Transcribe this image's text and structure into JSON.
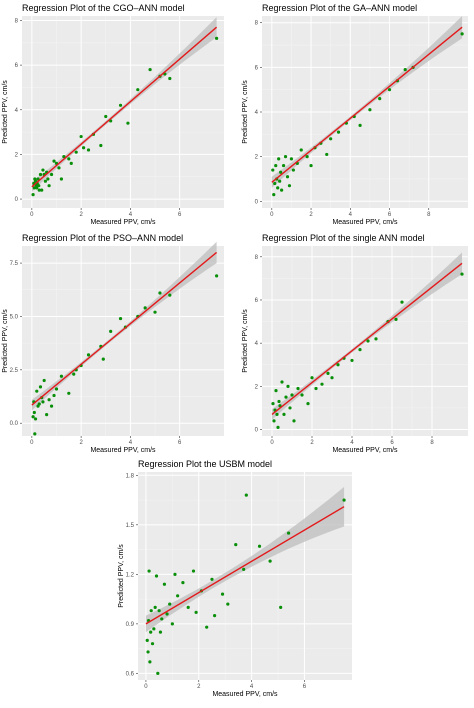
{
  "chart_data": [
    {
      "type": "scatter",
      "title": "Regression Plot of the CGO–ANN model",
      "xlabel": "Measured PPV, cm/s",
      "ylabel": "Predicted PPV, cm/s",
      "xlim": [
        -0.4,
        7.8
      ],
      "ylim": [
        -0.4,
        8.2
      ],
      "xticks": [
        0,
        2,
        4,
        6
      ],
      "yticks": [
        0,
        2,
        4,
        6,
        8
      ],
      "fit_line": {
        "x": [
          0,
          7.5
        ],
        "y": [
          0.55,
          7.7
        ]
      },
      "band_halfwidth": [
        0.22,
        0.1,
        0.45
      ],
      "series": [
        {
          "x": [
            0.05,
            0.08,
            0.1,
            0.12,
            0.15,
            0.18,
            0.2,
            0.22,
            0.25,
            0.28,
            0.3,
            0.35,
            0.4,
            0.45,
            0.5,
            0.55,
            0.6,
            0.65,
            0.7,
            0.8,
            0.9,
            1.0,
            1.1,
            1.2,
            1.3,
            1.5,
            1.6,
            1.8,
            2.0,
            2.1,
            2.3,
            2.5,
            2.8,
            3.0,
            3.2,
            3.6,
            3.9,
            4.3,
            4.8,
            5.2,
            5.4,
            5.6,
            7.5
          ],
          "y": [
            0.2,
            0.7,
            0.5,
            0.9,
            0.8,
            0.6,
            0.5,
            0.7,
            0.9,
            0.6,
            0.4,
            1.1,
            0.4,
            1.3,
            1.1,
            0.8,
            1.2,
            0.9,
            0.6,
            1.1,
            1.7,
            1.6,
            1.4,
            0.9,
            1.9,
            1.8,
            1.6,
            2.1,
            2.8,
            2.3,
            2.2,
            2.9,
            2.4,
            3.7,
            3.5,
            4.2,
            3.4,
            4.9,
            5.8,
            5.5,
            5.6,
            5.4,
            7.2
          ]
        }
      ]
    },
    {
      "type": "scatter",
      "title": "Regression Plot of the GA–ANN model",
      "xlabel": "Measured PPV, cm/s",
      "ylabel": "Predicted PPV, cm/s",
      "xlim": [
        -0.5,
        10.0
      ],
      "ylim": [
        -0.3,
        8.3
      ],
      "xticks": [
        0,
        2,
        4,
        6,
        8
      ],
      "yticks": [
        0,
        2,
        4,
        6,
        8
      ],
      "fit_line": {
        "x": [
          0,
          9.7
        ],
        "y": [
          0.85,
          7.8
        ]
      },
      "band_halfwidth": [
        0.25,
        0.1,
        0.5
      ],
      "series": [
        {
          "x": [
            0.05,
            0.1,
            0.15,
            0.2,
            0.25,
            0.3,
            0.35,
            0.4,
            0.45,
            0.5,
            0.6,
            0.7,
            0.8,
            0.9,
            1.0,
            1.1,
            1.3,
            1.5,
            1.8,
            2.0,
            2.2,
            2.5,
            2.8,
            3.0,
            3.4,
            3.8,
            4.2,
            4.5,
            5.0,
            5.5,
            6.0,
            6.4,
            6.8,
            7.2,
            9.7
          ],
          "y": [
            1.4,
            0.3,
            0.8,
            1.6,
            1.0,
            0.6,
            1.9,
            0.9,
            1.3,
            0.5,
            1.6,
            2.0,
            1.1,
            0.7,
            1.9,
            1.4,
            1.7,
            2.3,
            2.0,
            1.6,
            2.4,
            2.6,
            2.1,
            2.8,
            3.1,
            3.5,
            3.8,
            3.4,
            4.1,
            4.6,
            5.0,
            5.4,
            5.9,
            6.0,
            7.5
          ]
        }
      ]
    },
    {
      "type": "scatter",
      "title": "Regression Plot of the PSO–ANN model",
      "xlabel": "Measured PPV, cm/s",
      "ylabel": "Predicted PPV, cm/s",
      "xlim": [
        -0.4,
        7.8
      ],
      "ylim": [
        -0.6,
        8.3
      ],
      "xticks": [
        0,
        2,
        4,
        6
      ],
      "yticks": [
        0.0,
        2.5,
        5.0,
        7.5
      ],
      "ytick_labels": [
        "0.0",
        "2.5",
        "5.0",
        "7.5"
      ],
      "fit_line": {
        "x": [
          0,
          7.5
        ],
        "y": [
          0.85,
          8.0
        ]
      },
      "band_halfwidth": [
        0.25,
        0.1,
        0.5
      ],
      "series": [
        {
          "x": [
            0.05,
            0.08,
            0.1,
            0.12,
            0.15,
            0.2,
            0.25,
            0.3,
            0.35,
            0.4,
            0.45,
            0.5,
            0.6,
            0.7,
            0.8,
            0.9,
            1.0,
            1.2,
            1.5,
            1.7,
            1.8,
            2.0,
            2.3,
            2.8,
            2.9,
            3.2,
            3.6,
            3.8,
            4.3,
            4.6,
            5.0,
            5.2,
            5.6,
            7.5
          ],
          "y": [
            0.3,
            1.0,
            0.5,
            -0.5,
            0.2,
            1.5,
            0.8,
            0.9,
            1.7,
            1.2,
            1.0,
            2.0,
            0.4,
            1.1,
            0.8,
            1.3,
            1.6,
            2.2,
            1.4,
            2.3,
            2.5,
            2.7,
            3.2,
            3.6,
            3.0,
            4.3,
            4.9,
            4.5,
            5.0,
            5.4,
            5.2,
            6.1,
            6.0,
            6.9
          ]
        }
      ]
    },
    {
      "type": "scatter",
      "title": "Regression Plot of the single ANN model",
      "xlabel": "Measured PPV, cm/s",
      "ylabel": "Predicted PPV, cm/s",
      "xlim": [
        -0.5,
        9.8
      ],
      "ylim": [
        -0.3,
        8.5
      ],
      "xticks": [
        0,
        2,
        4,
        6,
        8
      ],
      "yticks": [
        0,
        2,
        4,
        6,
        8
      ],
      "fit_line": {
        "x": [
          0,
          9.5
        ],
        "y": [
          0.7,
          7.7
        ]
      },
      "band_halfwidth": [
        0.25,
        0.1,
        0.5
      ],
      "series": [
        {
          "x": [
            0.05,
            0.1,
            0.15,
            0.2,
            0.25,
            0.3,
            0.35,
            0.4,
            0.5,
            0.6,
            0.7,
            0.8,
            0.9,
            1.0,
            1.1,
            1.3,
            1.5,
            1.8,
            2.0,
            2.2,
            2.5,
            2.8,
            3.0,
            3.3,
            3.6,
            4.0,
            4.4,
            4.8,
            5.2,
            5.8,
            6.2,
            6.5,
            9.5
          ],
          "y": [
            1.2,
            0.4,
            0.9,
            1.8,
            0.7,
            0.1,
            1.3,
            1.1,
            2.2,
            0.7,
            1.5,
            2.0,
            1.0,
            1.6,
            0.4,
            1.9,
            1.6,
            1.2,
            2.4,
            1.9,
            2.1,
            2.6,
            2.4,
            3.0,
            3.3,
            3.2,
            3.7,
            4.1,
            4.2,
            5.0,
            5.1,
            5.9,
            7.2
          ]
        }
      ]
    },
    {
      "type": "scatter",
      "title": "Regression Plot the USBM model",
      "xlabel": "Measured PPV, cm/s",
      "ylabel": "Predicted PPV, cm/s",
      "xlim": [
        -0.3,
        7.8
      ],
      "ylim": [
        0.56,
        1.82
      ],
      "xticks": [
        0,
        2,
        4,
        6
      ],
      "yticks": [
        0.6,
        0.9,
        1.2,
        1.5,
        1.8
      ],
      "ytick_labels": [
        "0.6",
        "0.9",
        "1.2",
        "1.5",
        "1.8"
      ],
      "fit_line": {
        "x": [
          0,
          7.5
        ],
        "y": [
          0.9,
          1.61
        ]
      },
      "band_halfwidth": [
        0.05,
        0.03,
        0.12
      ],
      "series": [
        {
          "x": [
            0.05,
            0.08,
            0.1,
            0.12,
            0.15,
            0.18,
            0.2,
            0.25,
            0.3,
            0.35,
            0.4,
            0.45,
            0.5,
            0.55,
            0.6,
            0.7,
            0.8,
            0.9,
            1.0,
            1.1,
            1.2,
            1.4,
            1.6,
            1.8,
            1.9,
            2.1,
            2.3,
            2.5,
            2.6,
            2.9,
            3.1,
            3.4,
            3.7,
            3.8,
            4.3,
            4.7,
            5.1,
            5.4,
            7.5
          ],
          "y": [
            0.8,
            0.73,
            0.92,
            1.22,
            0.67,
            0.85,
            0.98,
            0.78,
            0.87,
            1.0,
            1.19,
            0.6,
            0.98,
            0.85,
            0.93,
            1.14,
            0.96,
            1.02,
            0.9,
            1.2,
            1.07,
            1.15,
            1.0,
            1.22,
            0.97,
            1.1,
            0.88,
            1.17,
            0.95,
            1.08,
            1.02,
            1.38,
            1.23,
            1.68,
            1.37,
            1.28,
            1.0,
            1.45,
            1.65
          ]
        }
      ]
    }
  ],
  "colors": {
    "panel_bg": "#ebebeb",
    "grid_major": "#ffffff",
    "grid_minor": "#f4f4f4",
    "points": "#0a8f0a",
    "fit_line": "#e31a1c",
    "band": "#bdbdbd"
  }
}
